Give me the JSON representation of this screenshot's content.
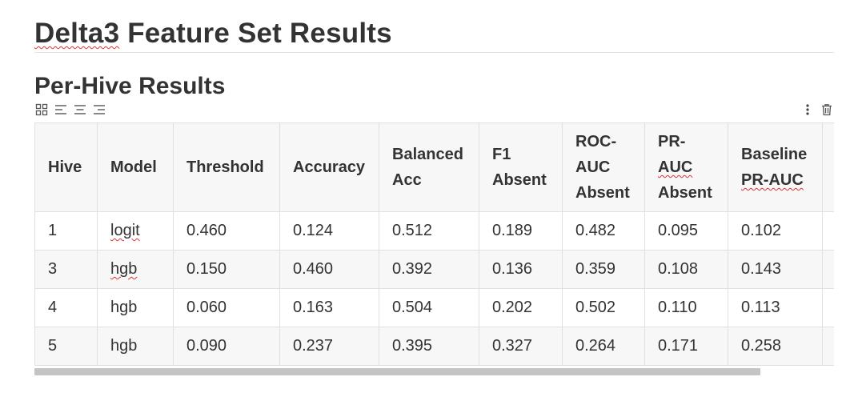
{
  "page": {
    "title_prefix": "Delta3",
    "title_rest": " Feature Set Results",
    "section_title": "Per-Hive Results"
  },
  "toolbar": {
    "left_icons": [
      "grid-icon",
      "align-left-icon",
      "align-center-icon",
      "align-right-icon"
    ],
    "right_icons": [
      "more-vertical-icon",
      "trash-icon"
    ]
  },
  "table": {
    "headers": [
      {
        "lines": [
          "Hive"
        ]
      },
      {
        "lines": [
          "Model"
        ]
      },
      {
        "lines": [
          "Threshold"
        ]
      },
      {
        "lines": [
          "Accuracy"
        ]
      },
      {
        "lines": [
          "Balanced",
          "Acc"
        ]
      },
      {
        "lines": [
          "F1",
          "Absent"
        ]
      },
      {
        "lines": [
          "ROC-",
          "AUC",
          "Absent"
        ]
      },
      {
        "lines": [
          "PR-",
          "AUC",
          "Absent"
        ]
      },
      {
        "lines": [
          "Baseline",
          "PR-AUC"
        ]
      },
      {
        "lines": [
          ""
        ]
      }
    ],
    "rows": [
      [
        "1",
        "logit",
        "0.460",
        "0.124",
        "0.512",
        "0.189",
        "0.482",
        "0.095",
        "0.102",
        ""
      ],
      [
        "3",
        "hgb",
        "0.150",
        "0.460",
        "0.392",
        "0.136",
        "0.359",
        "0.108",
        "0.143",
        ""
      ],
      [
        "4",
        "hgb",
        "0.060",
        "0.163",
        "0.504",
        "0.202",
        "0.502",
        "0.110",
        "0.113",
        ""
      ],
      [
        "5",
        "hgb",
        "0.090",
        "0.237",
        "0.395",
        "0.327",
        "0.264",
        "0.171",
        "0.258",
        ""
      ]
    ]
  },
  "colors": {
    "spellcheck_underline": "#dd3333",
    "header_bg": "#f7f7f7",
    "border": "#e0e0e0",
    "scrollbar": "#c4c4c4"
  }
}
